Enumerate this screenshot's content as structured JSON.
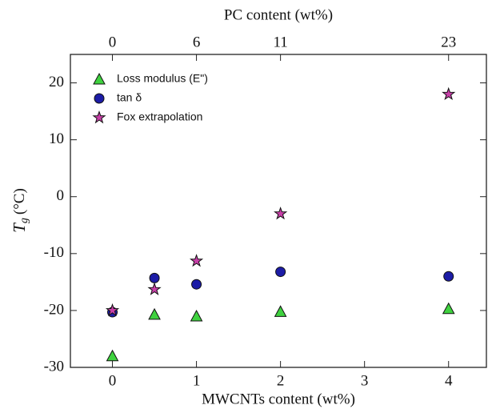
{
  "chart_data": {
    "type": "scatter",
    "xlabel": "MWCNTs content (wt%)",
    "x2label": "PC content (wt%)",
    "ylabel": {
      "symbol": "T",
      "subscript": "g",
      "unit": "(°C)"
    },
    "xlim": [
      -0.5,
      4.45
    ],
    "xticks": [
      0,
      1,
      2,
      3,
      4
    ],
    "x2ticks": [
      {
        "value": 0,
        "label": "0"
      },
      {
        "value": 1,
        "label": "6"
      },
      {
        "value": 2,
        "label": "11"
      },
      {
        "value": 4,
        "label": "23"
      }
    ],
    "ylim": [
      -30,
      25
    ],
    "yticks": [
      -30,
      -20,
      -10,
      0,
      10,
      20
    ],
    "legend": "upper left",
    "series": [
      {
        "name": "Loss modulus (E\")",
        "marker": "triangle",
        "color": "#3fd23f",
        "x": [
          0,
          0.5,
          1,
          2,
          4
        ],
        "values": [
          -28,
          -20.7,
          -21,
          -20.2,
          -19.7
        ]
      },
      {
        "name": "tan δ",
        "marker": "circle",
        "color": "#1c1ca6",
        "x": [
          0,
          0.5,
          1,
          2,
          4
        ],
        "values": [
          -20.3,
          -14.3,
          -15.4,
          -13.2,
          -14
        ]
      },
      {
        "name": "Fox extrapolation",
        "marker": "star",
        "color": "#c83fa8",
        "x": [
          0,
          0.5,
          1,
          2,
          4
        ],
        "values": [
          -20,
          -16.3,
          -11.3,
          -3,
          18
        ]
      }
    ]
  }
}
